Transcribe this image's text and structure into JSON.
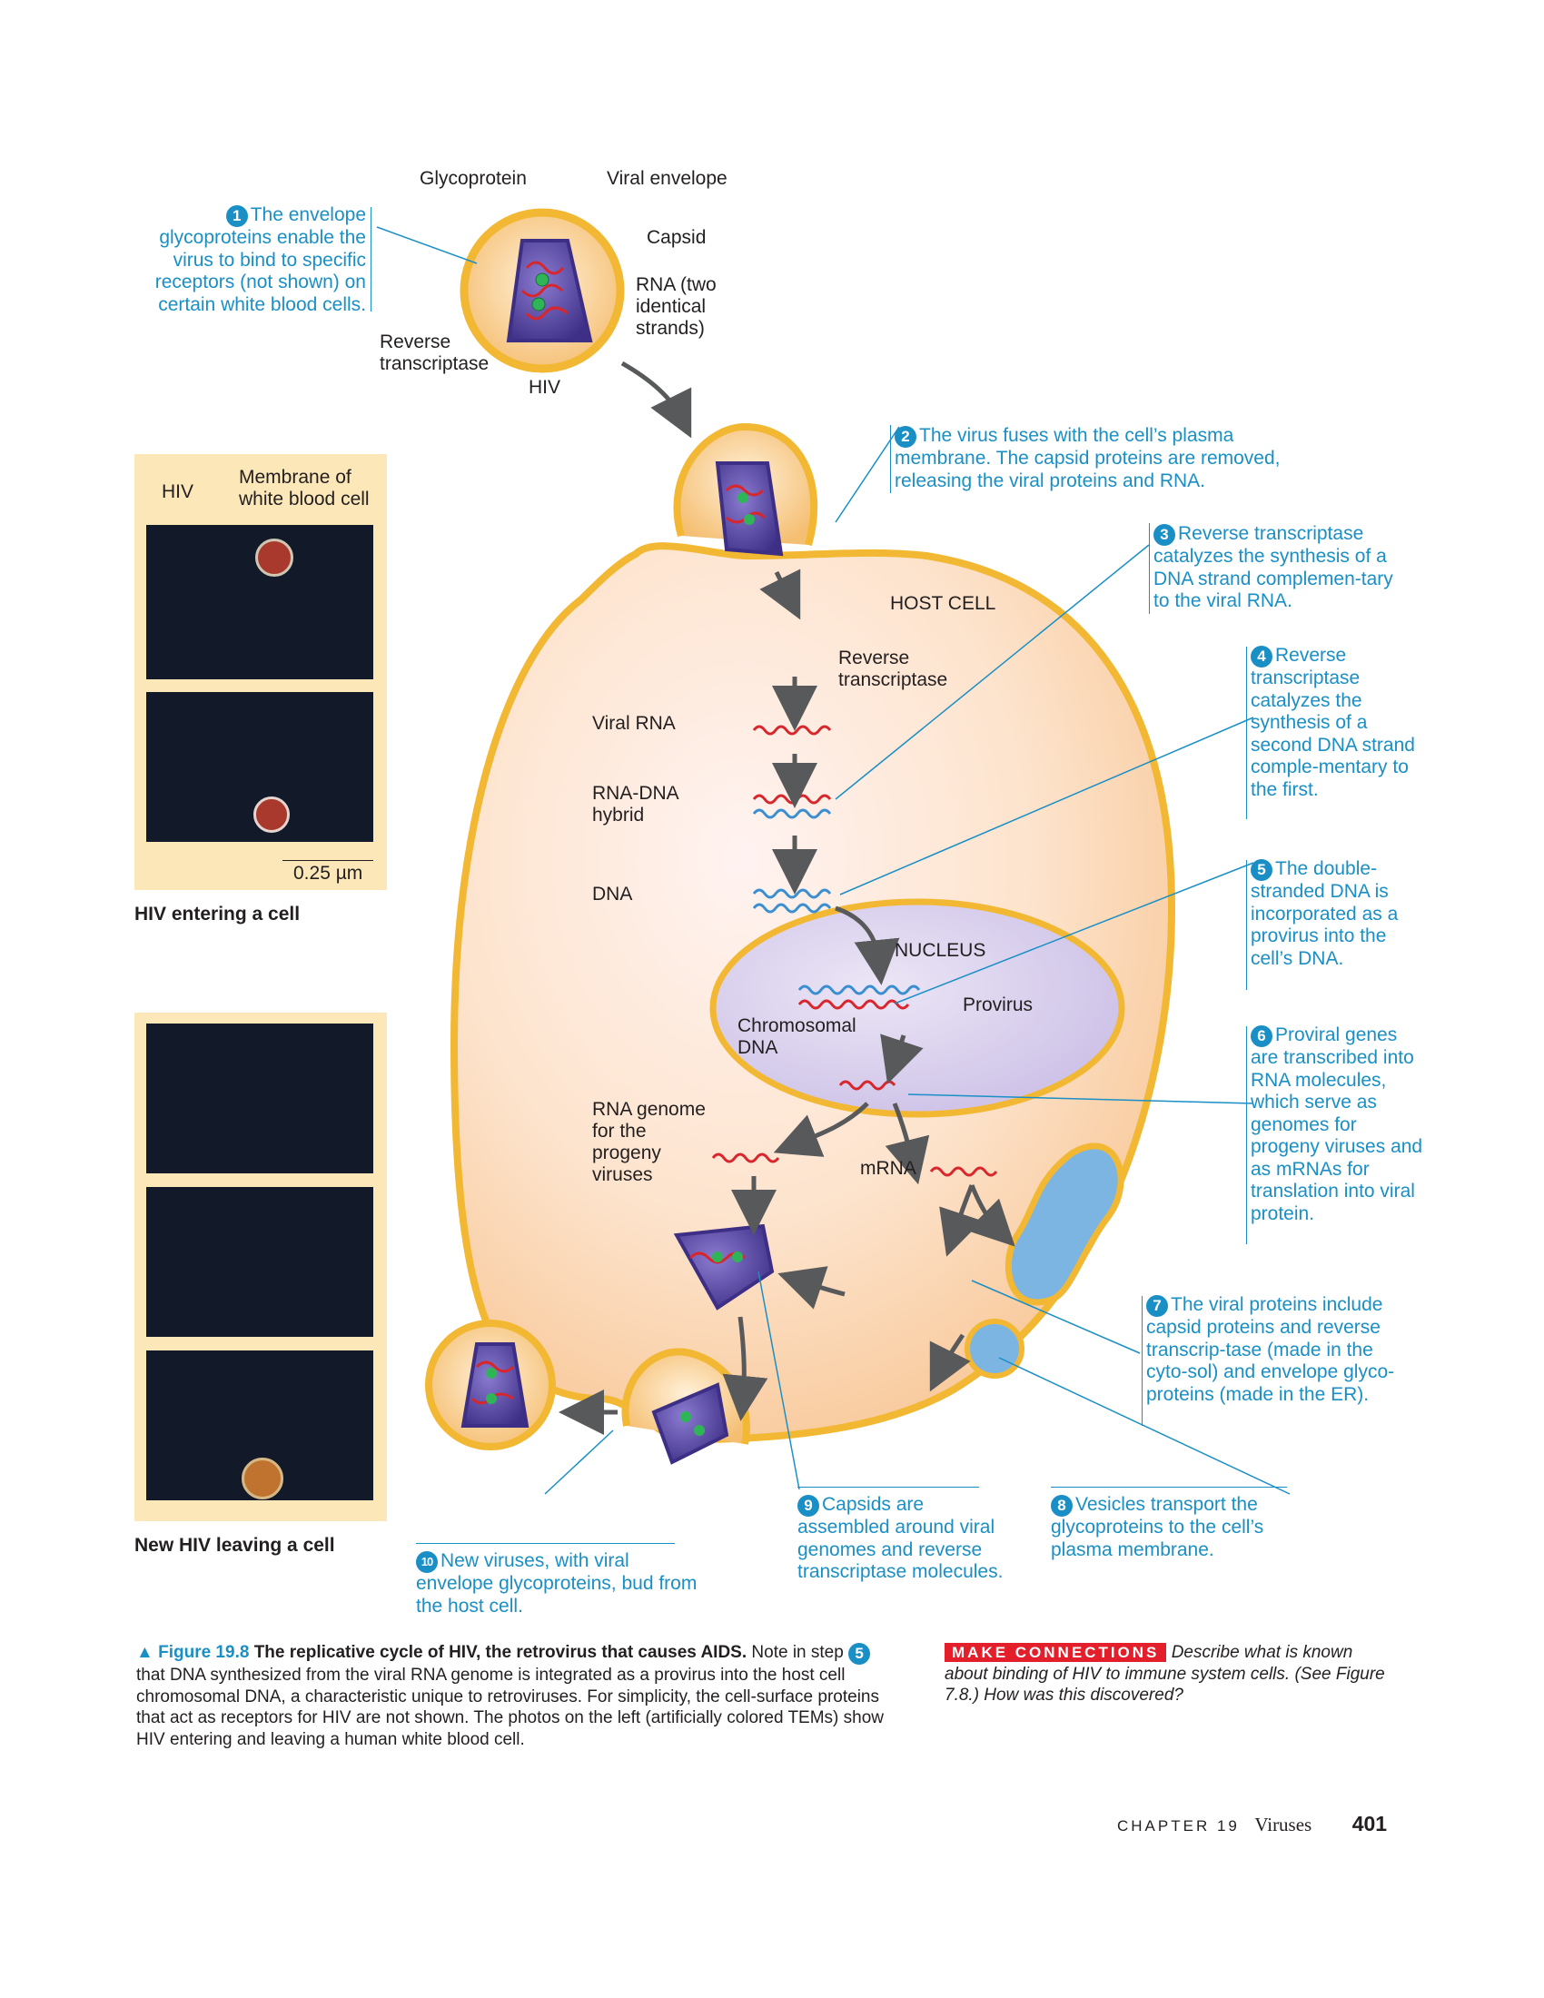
{
  "top_virus": {
    "glycoprotein_label": "Glycoprotein",
    "viral_envelope_label": "Viral envelope",
    "capsid_label": "Capsid",
    "rna_label": "RNA (two identical strands)",
    "rt_label": "Reverse transcriptase",
    "hiv_label": "HIV"
  },
  "steps": [
    {
      "num": "1",
      "text": "The envelope glycoproteins enable the virus to bind to specific receptors (not shown) on certain white blood cells."
    },
    {
      "num": "2",
      "text": "The virus fuses with the cell’s plasma membrane. The capsid proteins are removed, releasing the viral proteins and RNA."
    },
    {
      "num": "3",
      "text": "Reverse transcriptase catalyzes the synthesis of a DNA strand complemen-tary to the viral RNA."
    },
    {
      "num": "4",
      "text": "Reverse transcriptase catalyzes the synthesis of a second DNA strand comple-mentary to the first."
    },
    {
      "num": "5",
      "text": "The double-stranded DNA is incorporated as a provirus into the cell’s DNA."
    },
    {
      "num": "6",
      "text": "Proviral genes are transcribed into RNA molecules, which serve as genomes for progeny viruses and as mRNAs for translation into viral protein."
    },
    {
      "num": "7",
      "text": "The viral proteins include capsid proteins and reverse transcrip-tase (made in the cyto-sol) and envelope glyco-proteins (made in the ER)."
    },
    {
      "num": "8",
      "text": "Vesicles transport the glycoproteins to the cell’s plasma membrane."
    },
    {
      "num": "9",
      "text": "Capsids are assembled around viral genomes and reverse transcriptase molecules."
    },
    {
      "num": "10",
      "text": "New viruses, with viral envelope glycoproteins, bud from the host cell."
    }
  ],
  "cell_labels": {
    "host_cell": "HOST CELL",
    "reverse_transcriptase": "Reverse transcriptase",
    "viral_rna": "Viral RNA",
    "rna_dna_hybrid": "RNA-DNA hybrid",
    "dna": "DNA",
    "nucleus": "NUCLEUS",
    "provirus": "Provirus",
    "chromosomal_dna": "Chromosomal DNA",
    "rna_genome": "RNA genome for the progeny viruses",
    "mrna": "mRNA"
  },
  "photo_panels": {
    "entering": {
      "hiv_label": "HIV",
      "membrane_label": "Membrane of white blood cell",
      "scale_label": "0.25 µm",
      "caption": "HIV entering a cell"
    },
    "leaving": {
      "caption": "New HIV leaving a cell"
    }
  },
  "figure_caption": {
    "marker": "▲",
    "figure_number": "Figure 19.8",
    "title": "The replicative cycle of HIV, the retrovirus that causes AIDS.",
    "text_a": "Note in step",
    "step_ref": "5",
    "text_b": "that DNA synthesized from the viral RNA genome is integrated as a provirus into the host cell chromosomal DNA, a characteristic unique to retroviruses. For simplicity, the cell-surface proteins that act as receptors for HIV are not shown. The photos on the left (artificially colored TEMs) show HIV entering and leaving a human white blood cell."
  },
  "make_connections": {
    "tag": "MAKE CONNECTIONS",
    "text": "Describe what is known about binding of HIV to immune system cells. (See Figure 7.8.) How was this discovered?"
  },
  "footer": {
    "chapter": "CHAPTER 19",
    "chapter_title": "Viruses",
    "page_number": "401"
  },
  "colors": {
    "accent": "#1a8fc6",
    "membrane": "#f2b833",
    "cytoplasm": "#fbd9b5",
    "nucleus": "#d3c8e8",
    "capsid": "#5b4aa8",
    "rna": "#d7262c",
    "dna": "#3b8fd0",
    "make_connections": "#e31f2c"
  }
}
